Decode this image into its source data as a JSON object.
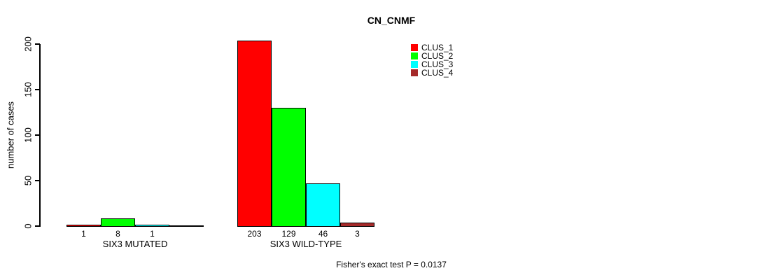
{
  "chart_data": {
    "type": "bar",
    "title": "CN_CNMF",
    "ylabel": "number of cases",
    "xlabel": "",
    "ylim": [
      0,
      200
    ],
    "yticks": [
      0,
      50,
      100,
      150,
      200
    ],
    "grid": false,
    "legend_position": "top-right",
    "categories": [
      "SIX3 MUTATED",
      "SIX3 WILD-TYPE"
    ],
    "series": [
      {
        "name": "CLUS_1",
        "color": "#ff0000",
        "values": [
          1,
          203
        ]
      },
      {
        "name": "CLUS_2",
        "color": "#00ff00",
        "values": [
          8,
          129
        ]
      },
      {
        "name": "CLUS_3",
        "color": "#00ffff",
        "values": [
          1,
          46
        ]
      },
      {
        "name": "CLUS_4",
        "color": "#a52a2a",
        "values": [
          0,
          3
        ]
      }
    ],
    "bar_value_labels": [
      [
        "1",
        "8",
        "1",
        ""
      ],
      [
        "203",
        "129",
        "46",
        "3"
      ]
    ],
    "annotation": "Fisher's exact test P = 0.0137"
  }
}
